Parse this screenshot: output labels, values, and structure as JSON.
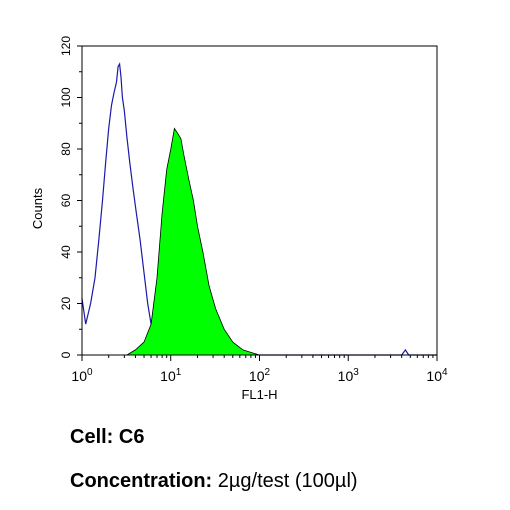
{
  "chart_data": {
    "type": "area",
    "xlabel": "FL1-H",
    "ylabel": "Counts",
    "x_scale": "log",
    "xlim": [
      1,
      10000
    ],
    "ylim": [
      0,
      120
    ],
    "x_ticks": [
      {
        "value": 1,
        "base": "10",
        "exp": "0"
      },
      {
        "value": 10,
        "base": "10",
        "exp": "1"
      },
      {
        "value": 100,
        "base": "10",
        "exp": "2"
      },
      {
        "value": 1000,
        "base": "10",
        "exp": "3"
      },
      {
        "value": 10000,
        "base": "10",
        "exp": "4"
      }
    ],
    "y_ticks": [
      0,
      20,
      40,
      60,
      80,
      100,
      120
    ],
    "series": [
      {
        "style": "outline",
        "color": "#1a1aa8",
        "x": [
          1.0,
          1.1,
          1.25,
          1.4,
          1.55,
          1.7,
          1.85,
          2.0,
          2.15,
          2.3,
          2.45,
          2.55,
          2.65,
          2.75,
          2.85,
          3.0,
          3.2,
          3.45,
          3.75,
          4.1,
          4.5,
          5.0,
          5.5,
          6.0,
          6.5
        ],
        "y": [
          22,
          12,
          20,
          30,
          45,
          60,
          75,
          88,
          97,
          102,
          106,
          112,
          113,
          108,
          100,
          95,
          85,
          75,
          65,
          55,
          45,
          32,
          20,
          12,
          18
        ]
      },
      {
        "style": "filled",
        "color": "#00ff00",
        "x": [
          3.2,
          4.0,
          5.0,
          6.0,
          7.0,
          8.0,
          9.0,
          10.0,
          11.0,
          12.0,
          13.0,
          14.0,
          16.0,
          18.0,
          20.0,
          23.0,
          27.0,
          32.0,
          40.0,
          50.0,
          65.0,
          80.0,
          100.0
        ],
        "y": [
          0,
          2,
          5,
          12,
          30,
          55,
          72,
          80,
          88,
          86,
          84,
          78,
          68,
          60,
          50,
          40,
          27,
          18,
          10,
          5,
          2,
          1,
          0
        ]
      },
      {
        "style": "outline",
        "color": "#1a1aa8",
        "x": [
          100,
          300,
          1000,
          3000,
          4000,
          4400,
          4800,
          6000,
          10000
        ],
        "y": [
          0,
          0,
          0,
          0,
          0,
          2,
          0,
          0,
          0
        ]
      }
    ]
  },
  "caption": {
    "cell_label": "Cell:",
    "cell_value": "C6",
    "concentration_label": "Concentration:",
    "concentration_value": "2µg/test (100µl)"
  }
}
